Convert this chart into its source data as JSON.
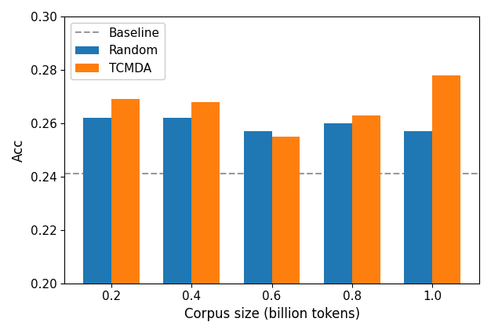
{
  "categories": [
    0.2,
    0.4,
    0.6,
    0.8,
    1.0
  ],
  "random_values": [
    0.262,
    0.262,
    0.257,
    0.26,
    0.257
  ],
  "tcmda_values": [
    0.269,
    0.268,
    0.255,
    0.263,
    0.278
  ],
  "baseline": 0.241,
  "bar_color_random": "#1f77b4",
  "bar_color_tcmda": "#ff7f0e",
  "baseline_color": "#999999",
  "xlabel": "Corpus size (billion tokens)",
  "ylabel": "Acc",
  "ylim": [
    0.2,
    0.3
  ],
  "yticks": [
    0.2,
    0.22,
    0.24,
    0.26,
    0.28,
    0.3
  ],
  "legend_labels": [
    "Baseline",
    "Random",
    "TCMDA"
  ],
  "bar_width": 0.35,
  "figsize": [
    6.26,
    4.24
  ],
  "dpi": 100
}
